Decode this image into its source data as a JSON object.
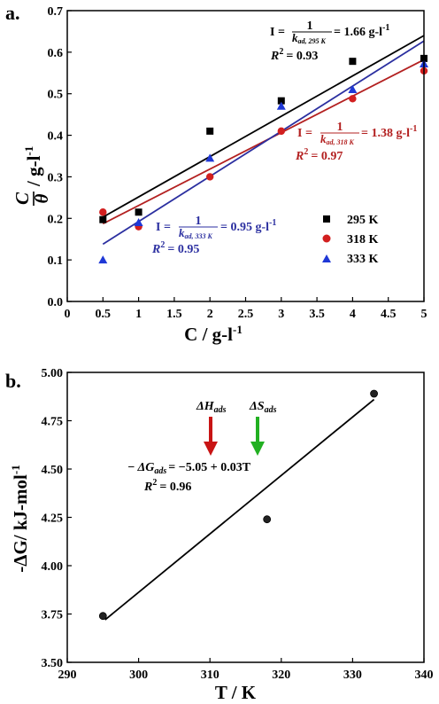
{
  "colors": {
    "black": "#000000",
    "red": "#d21f1f",
    "blue": "#1f38d6",
    "redLine": "#b32020",
    "blueLine": "#2b2fa0",
    "redArrow": "#c81414",
    "greenArrow": "#22b022"
  },
  "panel_a": {
    "label": "a.",
    "xlabel": "C / g-l",
    "xlabel_sup": "-1",
    "ylabel_frac_num": "C",
    "ylabel_frac_den": "θ",
    "ylabel_rest": "/ g-l",
    "ylabel_sup": "-1",
    "legend": [
      "295 K",
      "318 K",
      "333 K"
    ],
    "annotations": {
      "k295": {
        "I": "I =",
        "num": "1",
        "den": "k",
        "den_sub": "ad, 295 K",
        "value": "= 1.66 g-l",
        "sup": "-1",
        "r2": "R",
        "r2val": "= 0.93"
      },
      "k318": {
        "I": "I =",
        "num": "1",
        "den": "k",
        "den_sub": "ad, 318 K",
        "value": "= 1.38 g-l",
        "sup": "-1",
        "r2": "R",
        "r2val": "= 0.97"
      },
      "k333": {
        "I": "I =",
        "num": "1",
        "den": "k",
        "den_sub": "ad, 333 K",
        "value": "= 0.95 g-l",
        "sup": "-1",
        "r2": "R",
        "r2val": "= 0.95"
      }
    }
  },
  "panel_b": {
    "label": "b.",
    "xlabel": "T / K",
    "ylabel": "-ΔG/ kJ-mol",
    "ylabel_sup": "-1",
    "arrow_h_label": "ΔH",
    "arrow_h_sub": "ads",
    "arrow_s_label": "ΔS",
    "arrow_s_sub": "ads",
    "equation": "− ΔG",
    "equation_sub": "ads",
    "equation_rest": "= −5.05 + 0.03T",
    "r2": "R",
    "r2val": "= 0.96"
  },
  "chart_data": [
    {
      "type": "scatter",
      "xlim": [
        0,
        5
      ],
      "ylim": [
        0.0,
        0.7
      ],
      "xticks": [
        "0",
        "0.5",
        "1",
        "1.5",
        "2",
        "2.5",
        "3",
        "3.5",
        "4",
        "4.5",
        "5"
      ],
      "yticks": [
        "0.0",
        "0.1",
        "0.2",
        "0.3",
        "0.4",
        "0.5",
        "0.6",
        "0.7"
      ],
      "series": [
        {
          "name": "295 K",
          "marker": "square",
          "color": "#000000",
          "x": [
            0.5,
            1,
            2,
            3,
            4,
            5
          ],
          "y": [
            0.197,
            0.215,
            0.41,
            0.483,
            0.578,
            0.585
          ],
          "fit": [
            [
              0.5,
              0.203
            ],
            [
              5,
              0.64
            ]
          ]
        },
        {
          "name": "318 K",
          "marker": "circle",
          "color": "#d21f1f",
          "x": [
            0.5,
            1,
            2,
            3,
            4,
            5
          ],
          "y": [
            0.215,
            0.18,
            0.3,
            0.41,
            0.488,
            0.555
          ],
          "fit": [
            [
              0.5,
              0.187
            ],
            [
              5,
              0.582
            ]
          ]
        },
        {
          "name": "333 K",
          "marker": "triangle",
          "color": "#1f38d6",
          "x": [
            0.5,
            1,
            2,
            3,
            4,
            5
          ],
          "y": [
            0.1,
            0.19,
            0.345,
            0.47,
            0.51,
            0.572
          ],
          "fit": [
            [
              0.5,
              0.138
            ],
            [
              5,
              0.627
            ]
          ]
        }
      ]
    },
    {
      "type": "scatter",
      "xlim": [
        290,
        340
      ],
      "ylim": [
        3.5,
        5.0
      ],
      "xticks": [
        "290",
        "300",
        "310",
        "320",
        "330",
        "340"
      ],
      "yticks": [
        "3.50",
        "3.75",
        "4.00",
        "4.25",
        "4.50",
        "4.75",
        "5.00"
      ],
      "series": [
        {
          "marker": "circle",
          "color": "#000000",
          "x": [
            295,
            318,
            333
          ],
          "y": [
            3.74,
            4.24,
            4.89
          ],
          "fit": [
            [
              295.3,
              3.72
            ],
            [
              333,
              4.86
            ]
          ]
        }
      ]
    }
  ]
}
